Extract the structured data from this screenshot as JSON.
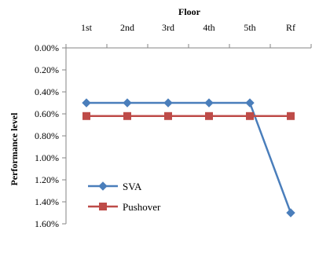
{
  "chart_data": {
    "type": "line",
    "title": "",
    "xlabel": "Floor",
    "ylabel": "Performance level",
    "categories": [
      "1st",
      "2nd",
      "3rd",
      "4th",
      "5th",
      "Rf"
    ],
    "x_axis_position": "top",
    "y_reversed": true,
    "ylim": [
      0,
      1.6
    ],
    "y_tick_values": [
      0,
      0.2,
      0.4,
      0.6,
      0.8,
      1.0,
      1.2,
      1.4,
      1.6
    ],
    "y_tick_labels": [
      "0.00%",
      "0.20%",
      "0.40%",
      "0.60%",
      "0.80%",
      "1.00%",
      "1.20%",
      "1.40%",
      "1.60%"
    ],
    "grid": false,
    "legend_position": "bottom-left",
    "series": [
      {
        "name": "SVA",
        "values": [
          0.5,
          0.5,
          0.5,
          0.5,
          0.5,
          1.5
        ],
        "color": "#4a7ebb",
        "marker": "diamond"
      },
      {
        "name": "Pushover",
        "values": [
          0.62,
          0.62,
          0.62,
          0.62,
          0.62,
          0.62
        ],
        "color": "#be4b48",
        "marker": "square"
      }
    ]
  }
}
